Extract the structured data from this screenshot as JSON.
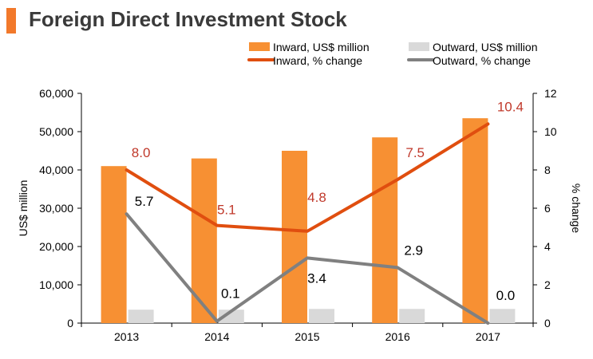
{
  "colors": {
    "accent": "#f2792b",
    "inward_bar": "#f79033",
    "outward_bar": "#d9d9d9",
    "inward_line": "#e04e0f",
    "outward_line": "#808080",
    "inward_label": "#c0392b",
    "outward_label": "#000000",
    "axis": "#000000"
  },
  "chart_data": {
    "type": "bar",
    "title": "Foreign Direct Investment Stock",
    "categories": [
      "2013",
      "2014",
      "2015",
      "2016",
      "2017"
    ],
    "ylabel": "US$ million",
    "y2label": "% change",
    "ylim": [
      0,
      60000
    ],
    "y2lim": [
      0,
      12
    ],
    "yticks": [
      "0",
      "10,000",
      "20,000",
      "30,000",
      "40,000",
      "50,000",
      "60,000"
    ],
    "y2ticks": [
      "0",
      "2",
      "4",
      "6",
      "8",
      "10",
      "12"
    ],
    "legend_position": "top-right",
    "series": [
      {
        "name": "Inward, US$ million",
        "kind": "bar",
        "axis": "left",
        "values": [
          41000,
          43000,
          45000,
          48500,
          53500
        ]
      },
      {
        "name": "Outward, US$ million",
        "kind": "bar",
        "axis": "left",
        "values": [
          3500,
          3500,
          3700,
          3700,
          3700
        ]
      },
      {
        "name": "Inward, % change",
        "kind": "line",
        "axis": "right",
        "values": [
          8.0,
          5.1,
          4.8,
          7.5,
          10.4
        ],
        "labels": [
          "8.0",
          "5.1",
          "4.8",
          "7.5",
          "10.4"
        ]
      },
      {
        "name": "Outward, % change",
        "kind": "line",
        "axis": "right",
        "values": [
          5.7,
          0.1,
          3.4,
          2.9,
          0.0
        ],
        "labels": [
          "5.7",
          "0.1",
          "3.4",
          "2.9",
          "0.0"
        ]
      }
    ]
  }
}
